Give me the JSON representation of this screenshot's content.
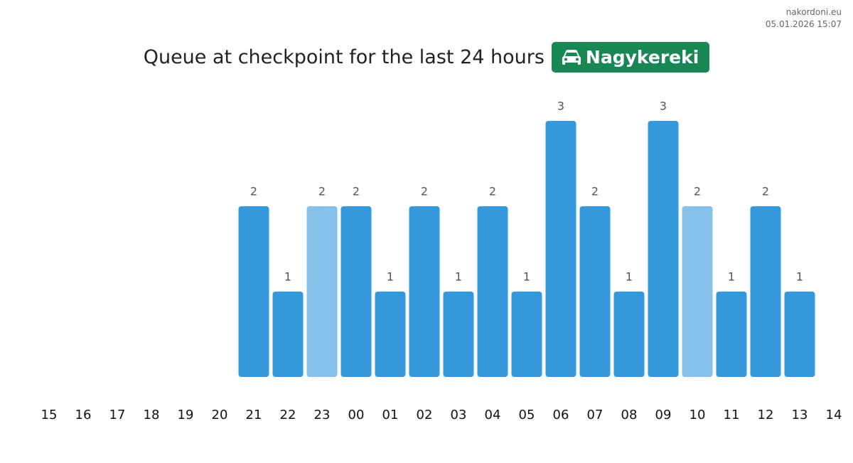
{
  "chart_data": {
    "type": "bar",
    "title": "Queue at checkpoint for the last 24 hours",
    "badge": "Nagykereki",
    "source": "nakordoni.eu",
    "timestamp": "05.01.2026 15:07",
    "categories": [
      "15",
      "16",
      "17",
      "18",
      "19",
      "20",
      "21",
      "22",
      "23",
      "00",
      "01",
      "02",
      "03",
      "04",
      "05",
      "06",
      "07",
      "08",
      "09",
      "10",
      "11",
      "12",
      "13",
      "14"
    ],
    "values": [
      null,
      null,
      null,
      null,
      null,
      null,
      2,
      1,
      2,
      2,
      1,
      2,
      1,
      2,
      1,
      3,
      2,
      1,
      3,
      2,
      1,
      2,
      1,
      null
    ],
    "colors": [
      null,
      null,
      null,
      null,
      null,
      null,
      "#3498db",
      "#3498db",
      "#85c1e9",
      "#3498db",
      "#3498db",
      "#3498db",
      "#3498db",
      "#3498db",
      "#3498db",
      "#3498db",
      "#3498db",
      "#3498db",
      "#3498db",
      "#85c1e9",
      "#3498db",
      "#3498db",
      "#3498db",
      null
    ],
    "badge_color": "#198754"
  }
}
